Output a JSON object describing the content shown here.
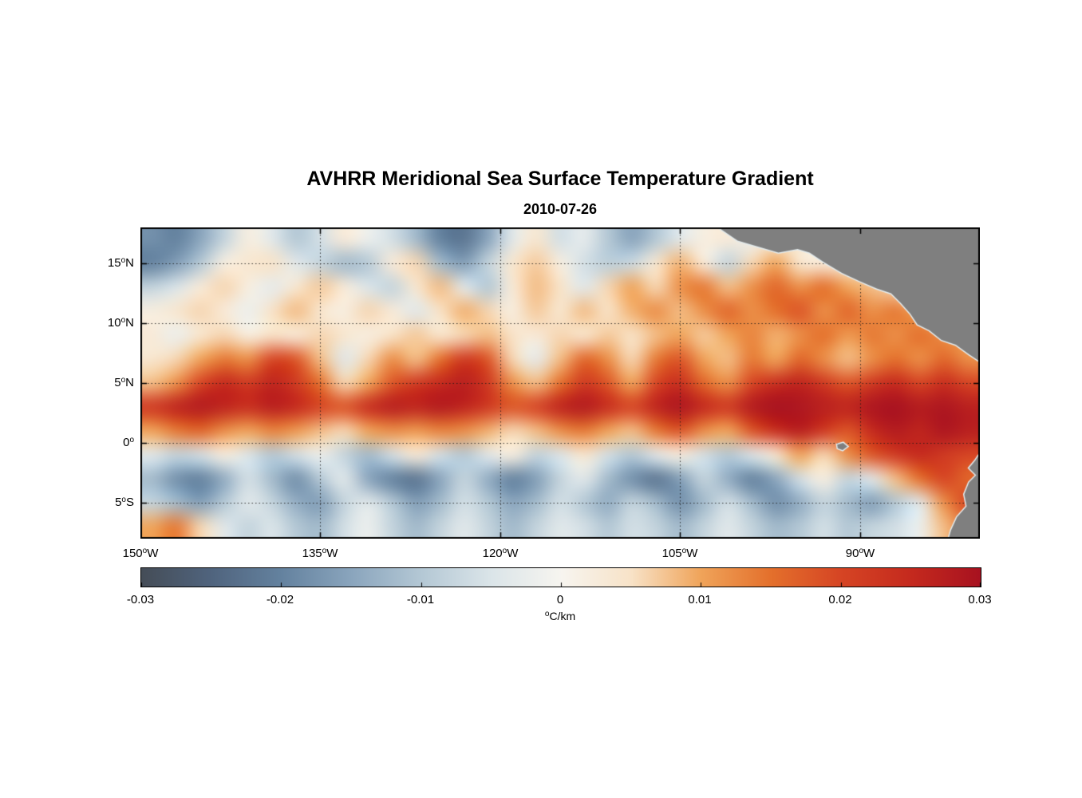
{
  "chart_data": {
    "type": "heatmap",
    "title": "AVHRR Meridional Sea Surface Temperature Gradient",
    "subtitle": "2010-07-26",
    "deg": "o",
    "xlabel": "",
    "ylabel": "",
    "lon_range": [
      -150,
      -80
    ],
    "lat_range": [
      -8,
      18
    ],
    "x_ticks": [
      {
        "num": "150",
        "dir": "W",
        "lon": -150
      },
      {
        "num": "135",
        "dir": "W",
        "lon": -135
      },
      {
        "num": "120",
        "dir": "W",
        "lon": -120
      },
      {
        "num": "105",
        "dir": "W",
        "lon": -105
      },
      {
        "num": "90",
        "dir": "W",
        "lon": -90
      }
    ],
    "y_ticks": [
      {
        "num": "15",
        "dir": "N",
        "lat": 15
      },
      {
        "num": "10",
        "dir": "N",
        "lat": 10
      },
      {
        "num": "5",
        "dir": "N",
        "lat": 5
      },
      {
        "num": "0",
        "dir": "",
        "lat": 0
      },
      {
        "num": "5",
        "dir": "S",
        "lat": -5
      }
    ],
    "grid": {
      "units": "degC/km",
      "lon_start": -149,
      "lon_step": 2,
      "lat_start": 17,
      "lat_step": -2,
      "values": [
        [
          -0.018,
          -0.02,
          -0.015,
          -0.008,
          0.002,
          -0.004,
          -0.01,
          -0.006,
          0.003,
          -0.002,
          -0.006,
          -0.012,
          -0.02,
          -0.022,
          -0.015,
          -0.004,
          0.004,
          -0.006,
          -0.003,
          -0.01,
          -0.015,
          -0.01,
          -0.004,
          0.002,
          0.003,
          -0.002,
          0.002,
          0.004,
          0.002,
          0.003,
          0.002,
          0.003,
          0.002,
          0.003,
          0.002
        ],
        [
          -0.02,
          -0.016,
          -0.01,
          0.002,
          0.004,
          0.005,
          -0.004,
          -0.008,
          -0.012,
          -0.01,
          0.003,
          0.006,
          -0.012,
          -0.016,
          -0.008,
          0.004,
          0.007,
          0.002,
          -0.006,
          -0.009,
          -0.007,
          0.004,
          0.009,
          0.003,
          -0.008,
          0.006,
          0.01,
          0.004,
          0.003,
          0.002,
          0.003,
          0.002,
          0.003,
          0.002,
          0.003
        ],
        [
          -0.008,
          -0.005,
          0.003,
          0.006,
          0.002,
          -0.003,
          0.004,
          0.007,
          0.003,
          -0.005,
          -0.008,
          0.004,
          0.008,
          -0.004,
          -0.01,
          0.003,
          0.008,
          0.005,
          -0.004,
          0.006,
          0.01,
          0.006,
          0.012,
          0.014,
          0.008,
          0.012,
          0.016,
          0.012,
          0.015,
          0.01,
          0.008,
          0.006,
          0.004,
          0.003,
          0.002
        ],
        [
          0.002,
          0.004,
          0.006,
          0.003,
          -0.002,
          0.005,
          0.008,
          0.004,
          0.002,
          0.006,
          0.003,
          -0.004,
          0.005,
          0.009,
          0.006,
          0.002,
          0.007,
          0.004,
          0.008,
          0.005,
          0.009,
          0.012,
          0.008,
          0.012,
          0.016,
          0.012,
          0.015,
          0.018,
          0.012,
          0.016,
          0.012,
          0.014,
          0.01,
          0.008,
          0.006
        ],
        [
          0.003,
          -0.002,
          0.004,
          0.006,
          0.002,
          0.005,
          0.003,
          0.006,
          0.004,
          0.002,
          0.005,
          0.007,
          0.004,
          0.006,
          0.008,
          0.005,
          0.003,
          0.006,
          0.004,
          0.007,
          0.005,
          0.008,
          0.01,
          0.007,
          0.01,
          0.013,
          0.009,
          0.012,
          0.015,
          0.011,
          0.014,
          0.012,
          0.015,
          0.012,
          0.01
        ],
        [
          0.004,
          0.006,
          0.01,
          0.014,
          0.012,
          0.02,
          0.018,
          0.008,
          -0.004,
          0.006,
          0.012,
          0.008,
          0.015,
          0.022,
          0.018,
          0.006,
          -0.003,
          0.008,
          0.016,
          0.012,
          0.006,
          0.014,
          0.018,
          0.01,
          0.008,
          0.014,
          0.01,
          0.016,
          0.012,
          0.008,
          0.012,
          0.015,
          0.012,
          0.016,
          0.012
        ],
        [
          0.008,
          0.012,
          0.02,
          0.025,
          0.022,
          0.026,
          0.022,
          0.015,
          0.006,
          0.01,
          0.018,
          0.022,
          0.025,
          0.027,
          0.022,
          0.012,
          0.008,
          0.015,
          0.022,
          0.018,
          0.01,
          0.02,
          0.024,
          0.016,
          0.012,
          0.02,
          0.024,
          0.026,
          0.022,
          0.018,
          0.022,
          0.025,
          0.02,
          0.024,
          0.02
        ],
        [
          0.022,
          0.026,
          0.028,
          0.026,
          0.024,
          0.027,
          0.025,
          0.02,
          0.018,
          0.024,
          0.027,
          0.026,
          0.028,
          0.026,
          0.022,
          0.018,
          0.02,
          0.026,
          0.028,
          0.024,
          0.02,
          0.026,
          0.029,
          0.025,
          0.022,
          0.028,
          0.03,
          0.029,
          0.027,
          0.026,
          0.029,
          0.03,
          0.028,
          0.029,
          0.027
        ],
        [
          0.01,
          0.014,
          0.016,
          0.012,
          0.01,
          0.013,
          0.011,
          0.008,
          0.006,
          0.01,
          0.012,
          0.011,
          0.013,
          0.012,
          0.009,
          0.006,
          0.008,
          0.012,
          0.014,
          0.01,
          0.008,
          0.014,
          0.018,
          0.012,
          0.01,
          0.018,
          0.024,
          0.027,
          0.022,
          0.018,
          0.025,
          0.028,
          0.026,
          0.029,
          0.027
        ],
        [
          -0.004,
          -0.008,
          -0.006,
          0.002,
          -0.005,
          -0.01,
          -0.006,
          -0.002,
          -0.008,
          -0.012,
          -0.006,
          0.003,
          -0.006,
          -0.01,
          -0.004,
          0.002,
          -0.008,
          -0.005,
          0.004,
          -0.006,
          -0.01,
          -0.004,
          0.002,
          -0.006,
          -0.01,
          -0.005,
          0.004,
          0.01,
          0.006,
          0.012,
          0.018,
          0.022,
          0.025,
          0.022,
          0.02
        ],
        [
          -0.012,
          -0.018,
          -0.02,
          -0.014,
          -0.006,
          -0.012,
          -0.018,
          -0.01,
          -0.004,
          -0.015,
          -0.02,
          -0.022,
          -0.015,
          -0.008,
          -0.014,
          -0.02,
          -0.016,
          -0.008,
          -0.004,
          -0.012,
          -0.018,
          -0.022,
          -0.016,
          -0.008,
          -0.014,
          -0.02,
          -0.015,
          -0.006,
          0.002,
          -0.008,
          -0.004,
          0.008,
          0.015,
          0.02,
          0.016
        ],
        [
          -0.008,
          -0.012,
          -0.016,
          -0.01,
          -0.004,
          -0.008,
          -0.014,
          -0.016,
          -0.008,
          -0.004,
          -0.01,
          -0.016,
          -0.012,
          -0.006,
          -0.01,
          -0.015,
          -0.012,
          -0.006,
          -0.01,
          -0.014,
          -0.008,
          -0.012,
          -0.018,
          -0.012,
          -0.006,
          -0.012,
          -0.018,
          -0.014,
          -0.008,
          -0.012,
          -0.016,
          -0.01,
          -0.004,
          0.012,
          0.02
        ],
        [
          0.01,
          0.014,
          0.006,
          -0.004,
          -0.008,
          -0.005,
          -0.01,
          -0.012,
          -0.006,
          -0.002,
          -0.008,
          -0.012,
          -0.008,
          -0.004,
          -0.008,
          -0.012,
          -0.008,
          -0.004,
          -0.006,
          -0.01,
          -0.006,
          -0.008,
          -0.012,
          -0.008,
          -0.004,
          -0.008,
          -0.012,
          -0.01,
          -0.006,
          -0.01,
          -0.008,
          -0.006,
          -0.002,
          0.008,
          0.014
        ]
      ]
    },
    "colormap_stops": [
      [
        -0.03,
        "#454d57"
      ],
      [
        -0.025,
        "#50647e"
      ],
      [
        -0.02,
        "#64829f"
      ],
      [
        -0.015,
        "#8aa5bd"
      ],
      [
        -0.01,
        "#b4c8d5"
      ],
      [
        -0.005,
        "#dbe5e9"
      ],
      [
        0,
        "#f7f5f0"
      ],
      [
        0.005,
        "#f8e3c8"
      ],
      [
        0.01,
        "#f0a45a"
      ],
      [
        0.015,
        "#e4702c"
      ],
      [
        0.02,
        "#d64524"
      ],
      [
        0.025,
        "#c52a1e"
      ],
      [
        0.03,
        "#a81220"
      ]
    ],
    "colorbar": {
      "min": -0.03,
      "max": 0.03,
      "ticks": [
        "-0.03",
        "-0.02",
        "-0.01",
        "0",
        "0.01",
        "0.02",
        "0.03"
      ],
      "label_sup": "o",
      "label_text": "C/km"
    },
    "land_color": "#7f7f7f",
    "coast_halo_color": "#e4ecee",
    "land_polygons": {
      "central_america": [
        [
          -101.8,
          18.0
        ],
        [
          -100.2,
          16.9
        ],
        [
          -98.5,
          16.4
        ],
        [
          -96.8,
          15.9
        ],
        [
          -95.2,
          16.2
        ],
        [
          -94.2,
          15.9
        ],
        [
          -93.0,
          15.1
        ],
        [
          -91.5,
          14.2
        ],
        [
          -90.0,
          13.5
        ],
        [
          -88.6,
          12.9
        ],
        [
          -87.4,
          12.5
        ],
        [
          -86.6,
          11.7
        ],
        [
          -85.8,
          10.8
        ],
        [
          -85.2,
          9.9
        ],
        [
          -84.2,
          9.4
        ],
        [
          -83.2,
          8.6
        ],
        [
          -82.0,
          8.2
        ],
        [
          -80.9,
          7.4
        ],
        [
          -80.0,
          6.8
        ],
        [
          -80.0,
          18.0
        ]
      ],
      "south_america": [
        [
          -80.0,
          -0.9
        ],
        [
          -80.4,
          -1.5
        ],
        [
          -80.9,
          -2.1
        ],
        [
          -80.3,
          -2.7
        ],
        [
          -80.9,
          -3.3
        ],
        [
          -81.3,
          -4.3
        ],
        [
          -81.1,
          -5.3
        ],
        [
          -81.9,
          -6.2
        ],
        [
          -82.4,
          -7.3
        ],
        [
          -82.6,
          -8.0
        ],
        [
          -80.0,
          -8.0
        ]
      ],
      "galapagos": [
        [
          -91.9,
          -0.15
        ],
        [
          -91.4,
          0.0
        ],
        [
          -91.05,
          -0.3
        ],
        [
          -91.45,
          -0.6
        ],
        [
          -91.85,
          -0.45
        ]
      ]
    }
  }
}
